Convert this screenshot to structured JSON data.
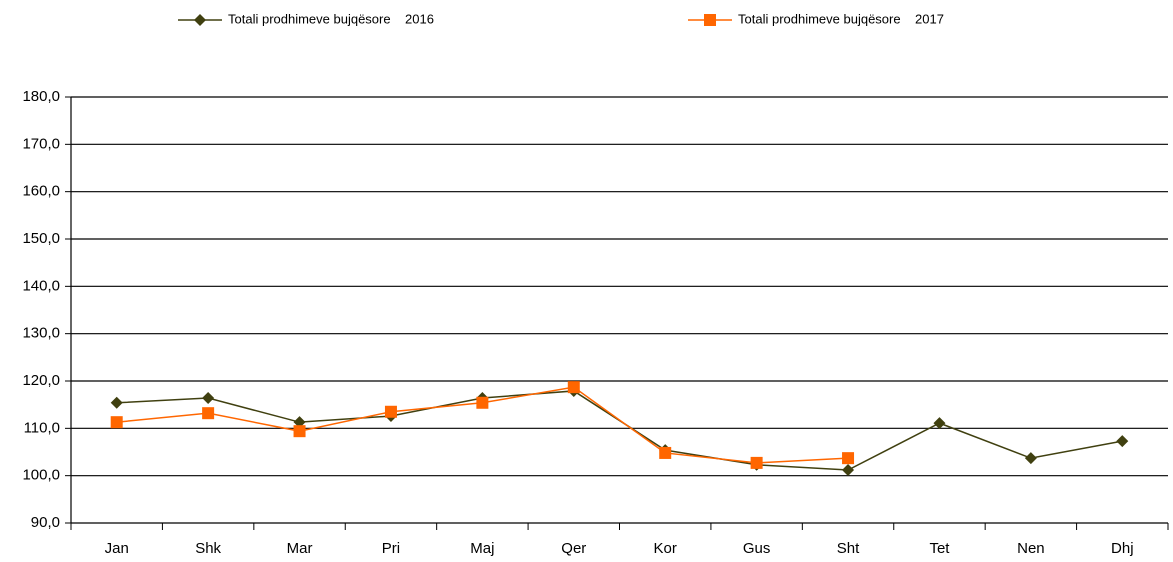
{
  "chart_data": {
    "type": "line",
    "categories": [
      "Jan",
      "Shk",
      "Mar",
      "Pri",
      "Maj",
      "Qer",
      "Kor",
      "Gus",
      "Sht",
      "Tet",
      "Nen",
      "Dhj"
    ],
    "series": [
      {
        "name": "Totali prodhimeve bujqësore    2016",
        "color": "#404010",
        "marker": "diamond",
        "values": [
          115.4,
          116.4,
          111.3,
          112.6,
          116.4,
          117.9,
          105.4,
          102.3,
          101.2,
          111.1,
          103.7,
          107.3
        ]
      },
      {
        "name": "Totali prodhimeve bujqësore    2017",
        "color": "#ff6600",
        "marker": "square",
        "values": [
          111.3,
          113.2,
          109.4,
          113.5,
          115.4,
          118.7,
          104.8,
          102.7,
          103.7,
          null,
          null,
          null
        ]
      }
    ],
    "ylim": [
      90,
      180
    ],
    "yticks": [
      {
        "value": 90,
        "label": "90,0"
      },
      {
        "value": 100,
        "label": "100,0"
      },
      {
        "value": 110,
        "label": "110,0"
      },
      {
        "value": 120,
        "label": "120,0"
      },
      {
        "value": 130,
        "label": "130,0"
      },
      {
        "value": 140,
        "label": "140,0"
      },
      {
        "value": 150,
        "label": "150,0"
      },
      {
        "value": 160,
        "label": "160,0"
      },
      {
        "value": 170,
        "label": "170,0"
      },
      {
        "value": 180,
        "label": "180,0"
      }
    ],
    "grid": true,
    "legend": "top"
  }
}
